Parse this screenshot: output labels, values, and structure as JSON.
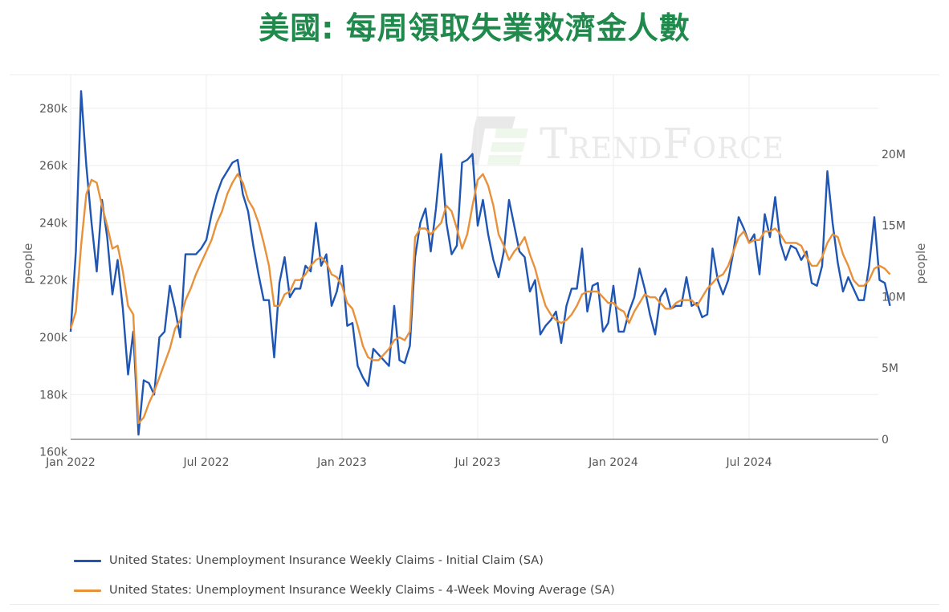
{
  "title": "美國: 每周領取失業救濟金人數",
  "watermark": "TrendForce",
  "colors": {
    "title": "#1f8a4c",
    "initial_claim": "#1f56b4",
    "moving_average": "#e8913a",
    "grid": "#eeeeee",
    "axis": "#777777",
    "tick_text": "#555555"
  },
  "axes": {
    "left": {
      "label": "people",
      "ticks": [
        "280k",
        "260k",
        "240k",
        "220k",
        "200k",
        "180k",
        "160k"
      ]
    },
    "right": {
      "label": "people",
      "ticks": [
        "20M",
        "15M",
        "10M",
        "5M",
        "0"
      ]
    },
    "x": {
      "ticks": [
        "Jan 2022",
        "Jul 2022",
        "Jan 2023",
        "Jul 2023",
        "Jan 2024",
        "Jul 2024"
      ]
    }
  },
  "legend": {
    "items": [
      {
        "label": "United States: Unemployment Insurance Weekly Claims - Initial Claim (SA)",
        "color": "#1f56b4"
      },
      {
        "label": "United States: Unemployment Insurance Weekly Claims - 4-Week Moving Average (SA)",
        "color": "#e8913a"
      }
    ]
  },
  "chart_data": {
    "type": "line",
    "title": "美國: 每周領取失業救濟金人數",
    "xlabel": "",
    "ylabel": "people",
    "y2label": "people",
    "ylim": [
      160000,
      290000
    ],
    "y2lim": [
      0,
      20000000
    ],
    "x_ticks": [
      "Jan 2022",
      "Jul 2022",
      "Jan 2023",
      "Jul 2023",
      "Jan 2024",
      "Jul 2024"
    ],
    "y_ticks": [
      "160k",
      "180k",
      "200k",
      "220k",
      "240k",
      "260k",
      "280k"
    ],
    "y2_ticks": [
      "0",
      "5M",
      "10M",
      "15M",
      "20M"
    ],
    "grid": true,
    "legend_position": "bottom",
    "x_start": "2022-01-01",
    "x_step": "1 week",
    "series": [
      {
        "name": "United States: Unemployment Insurance Weekly Claims - Initial Claim (SA)",
        "unit": "thousand people",
        "values": [
          202,
          230,
          286,
          260,
          240,
          223,
          248,
          235,
          215,
          227,
          210,
          187,
          202,
          166,
          185,
          184,
          180,
          200,
          202,
          218,
          210,
          200,
          229,
          229,
          229,
          231,
          234,
          243,
          250,
          255,
          258,
          261,
          262,
          250,
          244,
          232,
          222,
          213,
          213,
          193,
          219,
          228,
          214,
          217,
          217,
          225,
          223,
          240,
          225,
          229,
          211,
          216,
          225,
          204,
          205,
          190,
          186,
          183,
          196,
          194,
          192,
          190,
          211,
          192,
          191,
          197,
          228,
          240,
          245,
          230,
          245,
          264,
          240,
          229,
          232,
          261,
          262,
          264,
          239,
          248,
          236,
          227,
          221,
          230,
          248,
          239,
          230,
          228,
          216,
          220,
          201,
          204,
          206,
          209,
          198,
          211,
          217,
          217,
          231,
          209,
          218,
          219,
          202,
          205,
          218,
          202,
          202,
          209,
          214,
          224,
          217,
          208,
          201,
          214,
          217,
          210,
          211,
          211,
          221,
          211,
          212,
          207,
          208,
          231,
          220,
          215,
          220,
          230,
          242,
          238,
          233,
          236,
          222,
          243,
          235,
          249,
          233,
          227,
          232,
          231,
          227,
          230,
          219,
          218,
          225,
          258,
          240,
          226,
          216,
          221,
          217,
          213,
          213,
          225,
          242,
          220,
          219,
          211
        ]
      },
      {
        "name": "United States: Unemployment Insurance Weekly Claims - 4-Week Moving Average (SA)",
        "unit": "thousand people",
        "values": [
          203,
          209,
          232,
          250,
          255,
          254,
          246,
          239,
          231,
          232,
          223,
          211,
          208,
          170,
          172,
          177,
          181,
          186,
          191,
          196,
          203,
          206,
          213,
          217,
          222,
          226,
          230,
          234,
          240,
          244,
          250,
          254,
          257,
          254,
          248,
          245,
          240,
          233,
          225,
          211,
          211,
          215,
          216,
          220,
          220,
          222,
          225,
          227,
          228,
          226,
          222,
          221,
          218,
          212,
          210,
          204,
          197,
          193,
          192,
          192,
          194,
          196,
          199,
          200,
          199,
          202,
          235,
          238,
          238,
          236,
          238,
          240,
          246,
          244,
          238,
          231,
          236,
          246,
          255,
          257,
          253,
          246,
          236,
          232,
          227,
          230,
          232,
          235,
          229,
          224,
          217,
          211,
          208,
          206,
          205,
          206,
          208,
          211,
          215,
          216,
          216,
          216,
          214,
          212,
          212,
          210,
          209,
          205,
          209,
          212,
          215,
          214,
          214,
          212,
          210,
          210,
          212,
          213,
          213,
          213,
          211,
          214,
          217,
          219,
          221,
          222,
          225,
          230,
          235,
          237,
          233,
          234,
          234,
          237,
          237,
          238,
          236,
          233,
          233,
          233,
          232,
          228,
          225,
          225,
          228,
          233,
          236,
          235,
          229,
          225,
          220,
          218,
          218,
          220,
          224,
          225,
          224,
          222
        ]
      }
    ]
  }
}
